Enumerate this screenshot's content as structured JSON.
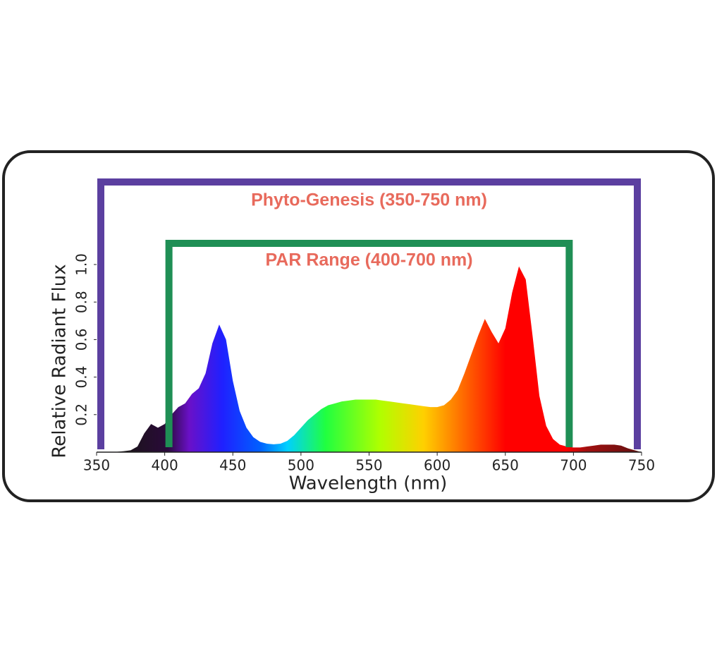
{
  "chart_data": {
    "type": "area",
    "x_label": "Wavelength (nm)",
    "y_label": "Relative Radiant Flux",
    "x": [
      350,
      355,
      360,
      365,
      370,
      375,
      380,
      385,
      390,
      395,
      400,
      405,
      410,
      415,
      420,
      425,
      430,
      435,
      440,
      445,
      450,
      455,
      460,
      465,
      470,
      475,
      480,
      485,
      490,
      495,
      500,
      505,
      510,
      515,
      520,
      525,
      530,
      535,
      540,
      545,
      550,
      555,
      560,
      565,
      570,
      575,
      580,
      585,
      590,
      595,
      600,
      605,
      610,
      615,
      620,
      625,
      630,
      635,
      640,
      645,
      650,
      655,
      660,
      665,
      670,
      675,
      680,
      685,
      690,
      695,
      700,
      705,
      710,
      715,
      720,
      725,
      730,
      735,
      740,
      745,
      750
    ],
    "values": [
      0,
      0,
      0,
      0.002,
      0.005,
      0.01,
      0.03,
      0.1,
      0.15,
      0.13,
      0.15,
      0.2,
      0.24,
      0.26,
      0.31,
      0.34,
      0.42,
      0.58,
      0.68,
      0.6,
      0.38,
      0.22,
      0.13,
      0.08,
      0.055,
      0.045,
      0.042,
      0.045,
      0.06,
      0.09,
      0.13,
      0.17,
      0.2,
      0.23,
      0.25,
      0.26,
      0.27,
      0.275,
      0.28,
      0.28,
      0.28,
      0.28,
      0.275,
      0.27,
      0.265,
      0.26,
      0.255,
      0.25,
      0.245,
      0.24,
      0.24,
      0.25,
      0.28,
      0.33,
      0.42,
      0.52,
      0.62,
      0.71,
      0.64,
      0.58,
      0.66,
      0.85,
      0.99,
      0.92,
      0.62,
      0.3,
      0.14,
      0.07,
      0.04,
      0.03,
      0.025,
      0.025,
      0.03,
      0.035,
      0.04,
      0.04,
      0.04,
      0.035,
      0.02,
      0.01,
      0
    ],
    "xlim": [
      350,
      750
    ],
    "ylim": [
      0,
      1
    ],
    "xticks": [
      350,
      400,
      450,
      500,
      550,
      600,
      650,
      700,
      750
    ],
    "yticks": [
      0.2,
      0.4,
      0.6,
      0.8,
      {
        "value": 1,
        "label": "1.0"
      }
    ],
    "annotations": [
      {
        "label": "Phyto-Genesis (350-750 nm)",
        "range": [
          350,
          750
        ],
        "color": "#5b3fa0"
      },
      {
        "label": "PAR Range (400-700 nm)",
        "range": [
          400,
          700
        ],
        "color": "#1f8f55"
      }
    ]
  }
}
